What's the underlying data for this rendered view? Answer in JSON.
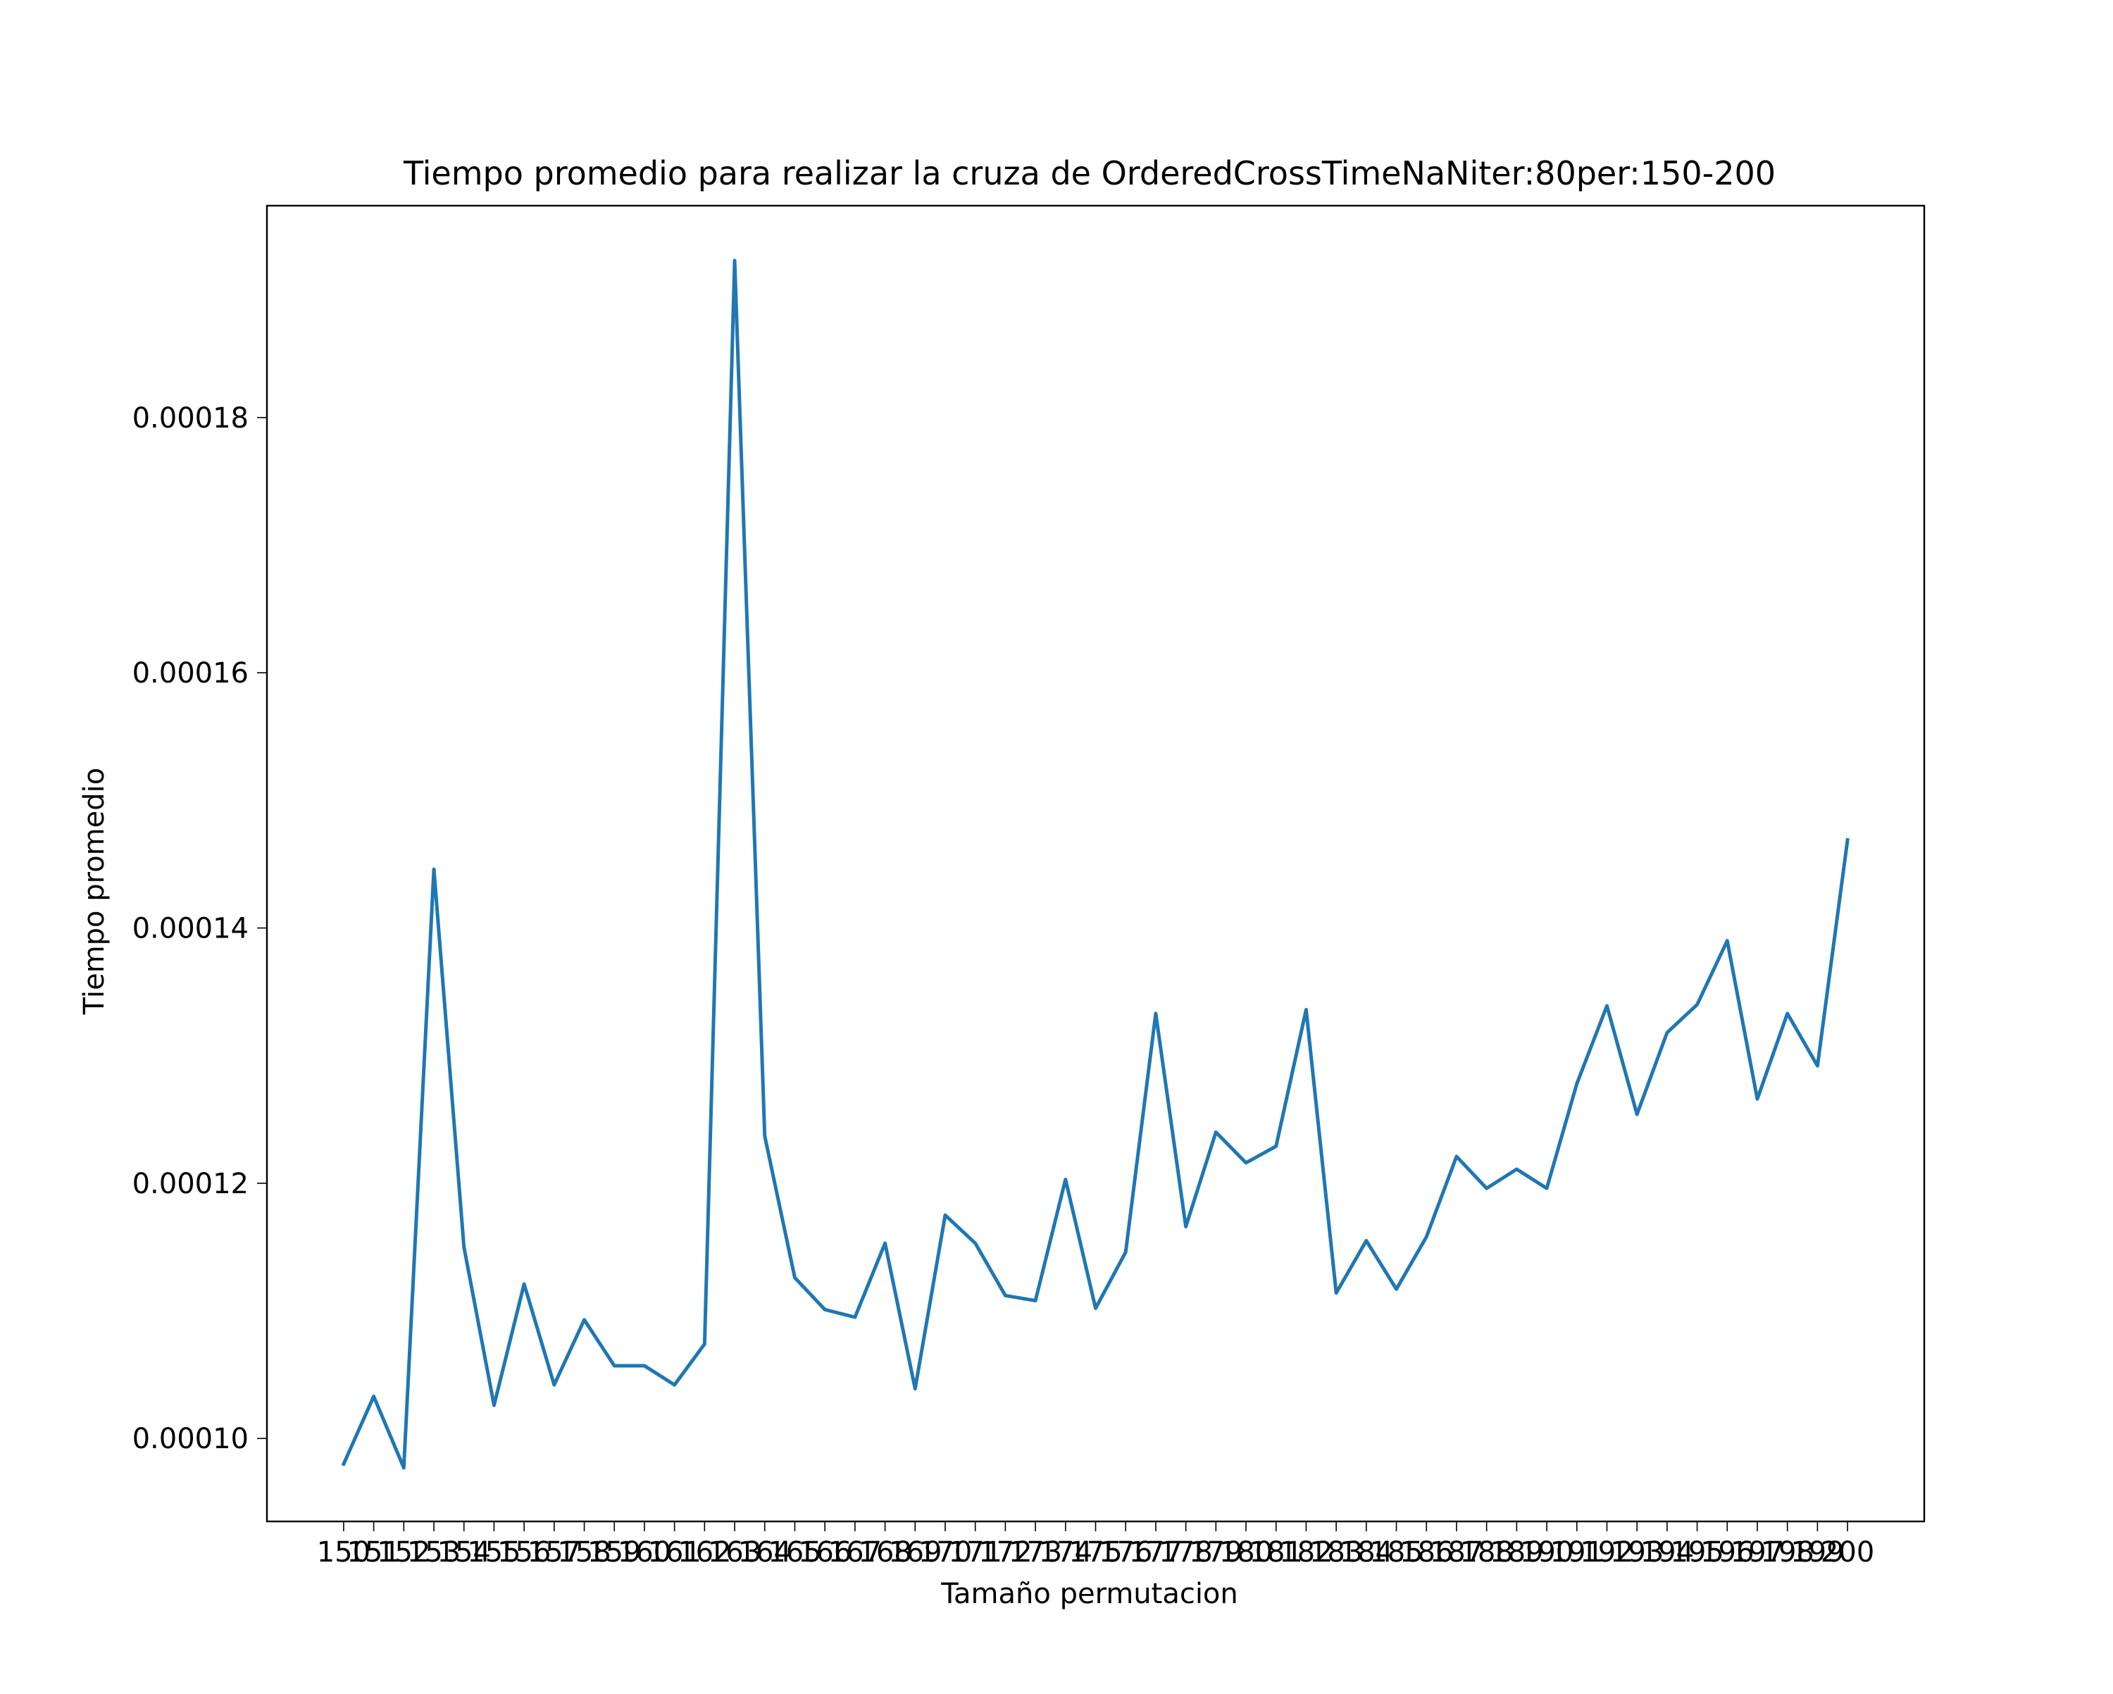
{
  "chart_data": {
    "type": "line",
    "title": "Tiempo promedio para realizar la cruza de OrderedCrossTimeNaNiter:80per:150-200",
    "xlabel": "Tamaño permutacion",
    "ylabel": "Tiempo promedio",
    "x": [
      150,
      151,
      152,
      153,
      154,
      155,
      156,
      157,
      158,
      159,
      160,
      161,
      162,
      163,
      164,
      165,
      166,
      167,
      168,
      169,
      170,
      171,
      172,
      173,
      174,
      175,
      176,
      177,
      178,
      179,
      180,
      181,
      182,
      183,
      184,
      185,
      186,
      187,
      188,
      189,
      190,
      191,
      192,
      193,
      194,
      195,
      196,
      197,
      198,
      199,
      200
    ],
    "xticks": [
      "150",
      "151",
      "152",
      "153",
      "154",
      "155",
      "156",
      "157",
      "158",
      "159",
      "160",
      "161",
      "162",
      "163",
      "164",
      "165",
      "166",
      "167",
      "168",
      "169",
      "170",
      "171",
      "172",
      "173",
      "174",
      "175",
      "176",
      "177",
      "178",
      "179",
      "180",
      "181",
      "182",
      "183",
      "184",
      "185",
      "186",
      "187",
      "188",
      "189",
      "190",
      "191",
      "192",
      "193",
      "194",
      "195",
      "196",
      "197",
      "198",
      "199",
      "200"
    ],
    "series": [
      {
        "color": "#1f77b4",
        "values": [
          9.8e-05,
          0.0001033,
          9.77e-05,
          0.0001446,
          0.000115,
          0.0001026,
          0.0001121,
          0.0001042,
          0.0001093,
          0.0001057,
          0.0001057,
          0.0001042,
          0.0001074,
          0.0001923,
          0.0001237,
          0.0001126,
          0.0001101,
          0.0001095,
          0.0001153,
          0.0001039,
          0.0001175,
          0.0001153,
          0.0001112,
          0.0001108,
          0.0001203,
          0.0001102,
          0.0001146,
          0.0001333,
          0.0001166,
          0.000124,
          0.0001216,
          0.0001229,
          0.0001336,
          0.0001114,
          0.0001155,
          0.0001117,
          0.0001158,
          0.0001221,
          0.0001196,
          0.0001211,
          0.0001196,
          0.0001278,
          0.0001339,
          0.0001254,
          0.0001318,
          0.000134,
          0.000139,
          0.0001266,
          0.0001333,
          0.0001292,
          0.0001469
        ]
      }
    ],
    "yticks": [
      "0.00010",
      "0.00012",
      "0.00014",
      "0.00016",
      "0.00018"
    ],
    "ytick_values": [
      0.0001,
      0.00012,
      0.00014,
      0.00016,
      0.00018
    ],
    "ylim": [
      9.35e-05,
      0.0001966
    ],
    "xlim": [
      147.45,
      202.55
    ],
    "grid": false
  }
}
